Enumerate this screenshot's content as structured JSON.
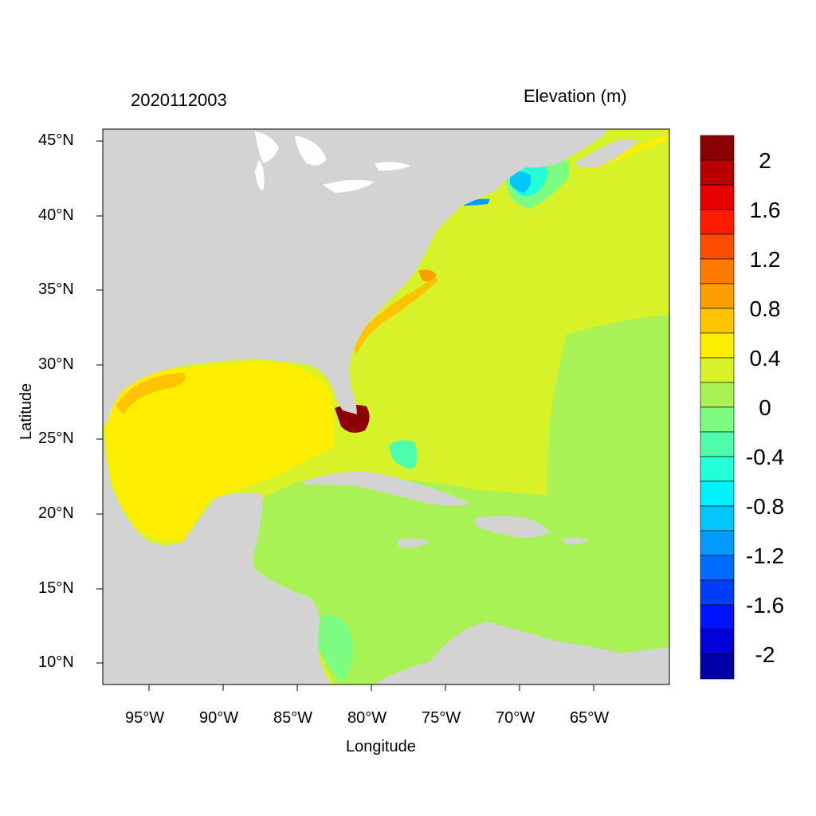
{
  "header": {
    "left_title": "2020112003",
    "right_title": "Elevation (m)"
  },
  "axes": {
    "xlabel": "Longitude",
    "ylabel": "Latitude",
    "x_ticks": [
      "95°W",
      "90°W",
      "85°W",
      "80°W",
      "75°W",
      "70°W",
      "65°W"
    ],
    "y_ticks": [
      "45°N",
      "40°N",
      "35°N",
      "30°N",
      "25°N",
      "20°N",
      "15°N",
      "10°N"
    ]
  },
  "colorbar": {
    "labels": [
      "2",
      "1.6",
      "1.2",
      "0.8",
      "0.4",
      "0",
      "-0.4",
      "-0.8",
      "-1.2",
      "-1.6",
      "-2"
    ],
    "colors": [
      "#8b0000",
      "#b80000",
      "#e60000",
      "#ff1a00",
      "#ff4d00",
      "#ff7a00",
      "#ff9e00",
      "#ffc400",
      "#ffee00",
      "#d8f22a",
      "#a8f255",
      "#7cfd82",
      "#4dfdac",
      "#22ffd6",
      "#00f2ff",
      "#00c8ff",
      "#009bff",
      "#006cff",
      "#003eff",
      "#0012ff",
      "#0000d8",
      "#0000a8"
    ]
  },
  "colors": {
    "land": "#d3d3d3",
    "ocean_default": "#d8f22a",
    "gulf": "#ffee00",
    "caribbean": "#a8f255",
    "surge_high": "#8b0000"
  }
}
